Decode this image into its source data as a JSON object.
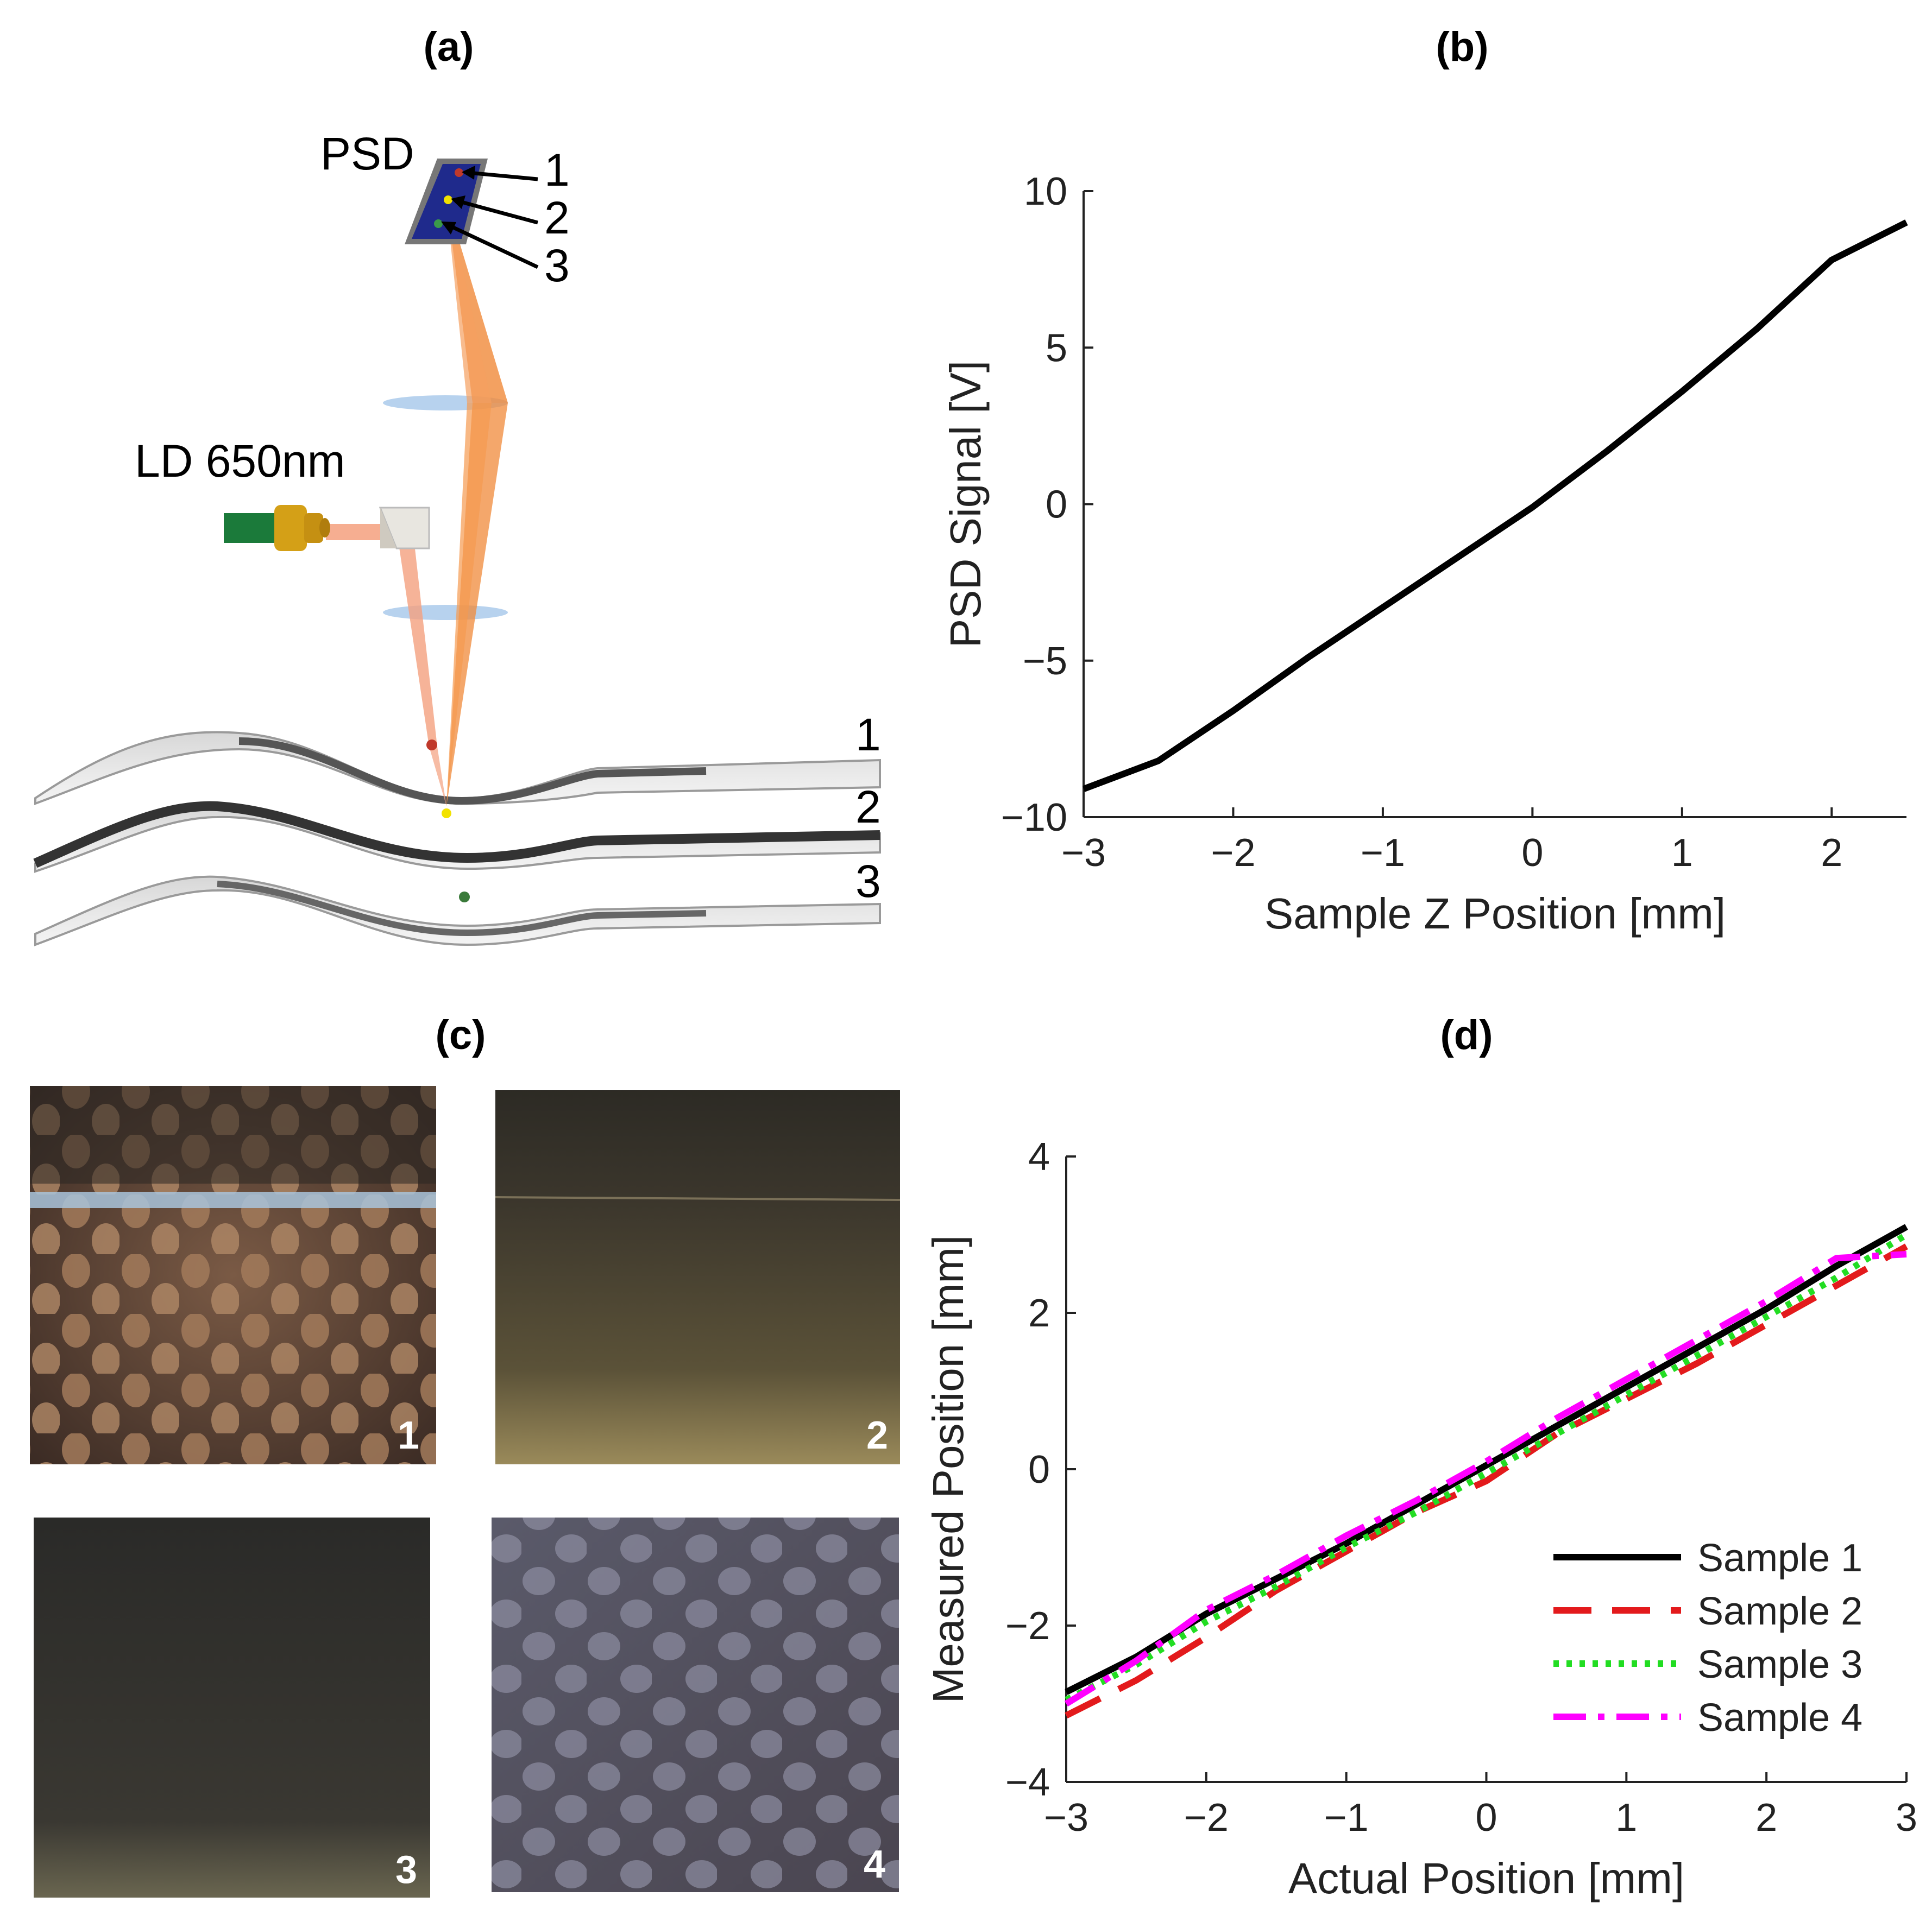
{
  "panels": {
    "a": {
      "label": "(a)",
      "psd_label": "PSD",
      "ld_label": "LD 650nm",
      "spot_labels": [
        "1",
        "2",
        "3"
      ],
      "surface_labels": [
        "1",
        "2",
        "3"
      ],
      "colors": {
        "beam": "#f08a3a",
        "laser_beam": "#f4a07e",
        "psd_face": "#1f2a8c",
        "ld_body": "#1b7a3a",
        "ld_connector": "#d4a017"
      }
    },
    "b": {
      "label": "(b)"
    },
    "c": {
      "label": "(c)",
      "photo_numbers": [
        "1",
        "2",
        "3",
        "4"
      ]
    },
    "d": {
      "label": "(d)"
    }
  },
  "chart_data": [
    {
      "type": "line",
      "panel": "(b)",
      "xlabel": "Sample Z Position [mm]",
      "ylabel": "PSD Signal [V]",
      "xlim": [
        -3,
        2.5
      ],
      "ylim": [
        -10,
        10
      ],
      "xticks": [
        -3,
        -2,
        -1,
        0,
        1,
        2
      ],
      "yticks": [
        -10,
        -5,
        0,
        5,
        10
      ],
      "xtick_labels": [
        "−3",
        "−2",
        "−1",
        "0",
        "1",
        "2"
      ],
      "ytick_labels": [
        "−10",
        "−5",
        "0",
        "5",
        "10"
      ],
      "series": [
        {
          "name": "PSD signal",
          "color": "#000000",
          "x": [
            -3,
            -2.5,
            -2,
            -1.5,
            -1,
            -0.5,
            0,
            0.5,
            1,
            1.5,
            2,
            2.5
          ],
          "y": [
            -9.1,
            -8.2,
            -6.6,
            -4.9,
            -3.3,
            -1.7,
            -0.1,
            1.7,
            3.6,
            5.6,
            7.8,
            9.0
          ]
        }
      ]
    },
    {
      "type": "line",
      "panel": "(d)",
      "xlabel": "Actual Position [mm]",
      "ylabel": "Measured Position [mm]",
      "xlim": [
        -3,
        3
      ],
      "ylim": [
        -4,
        4
      ],
      "xticks": [
        -3,
        -2,
        -1,
        0,
        1,
        2,
        3
      ],
      "yticks": [
        -4,
        -2,
        0,
        2,
        4
      ],
      "xtick_labels": [
        "−3",
        "−2",
        "−1",
        "0",
        "1",
        "2",
        "3"
      ],
      "ytick_labels": [
        "−4",
        "−2",
        "0",
        "2",
        "4"
      ],
      "legend": "bottom-right",
      "series": [
        {
          "name": "Sample 1",
          "color": "#000000",
          "dash": "solid",
          "x": [
            -3,
            -2.5,
            -2,
            -1.5,
            -1,
            -0.5,
            0,
            0.5,
            1,
            1.5,
            2,
            2.5,
            3
          ],
          "y": [
            -2.85,
            -2.4,
            -1.85,
            -1.4,
            -0.95,
            -0.45,
            0.05,
            0.55,
            1.05,
            1.55,
            2.05,
            2.6,
            3.1
          ]
        },
        {
          "name": "Sample 2",
          "color": "#e31a1c",
          "dash": "dash",
          "x": [
            -3,
            -2.5,
            -2,
            -1.5,
            -1,
            -0.5,
            0,
            0.5,
            1,
            1.5,
            2,
            2.5,
            3
          ],
          "y": [
            -3.15,
            -2.7,
            -2.15,
            -1.55,
            -1.05,
            -0.55,
            -0.15,
            0.45,
            0.9,
            1.35,
            1.85,
            2.35,
            2.85
          ]
        },
        {
          "name": "Sample 3",
          "color": "#22dd22",
          "dash": "dot",
          "x": [
            -3,
            -2.5,
            -2,
            -1.5,
            -1,
            -0.5,
            0,
            0.5,
            1,
            1.5,
            2,
            2.5,
            3
          ],
          "y": [
            -2.95,
            -2.5,
            -1.95,
            -1.5,
            -1.0,
            -0.55,
            -0.05,
            0.45,
            0.95,
            1.45,
            1.95,
            2.45,
            3.0
          ]
        },
        {
          "name": "Sample 4",
          "color": "#ff00ff",
          "dash": "dashdot",
          "x": [
            -3,
            -2.5,
            -2,
            -1.5,
            -1,
            -0.5,
            0,
            0.5,
            1,
            1.5,
            2,
            2.5,
            3
          ],
          "y": [
            -3.0,
            -2.45,
            -1.8,
            -1.35,
            -0.85,
            -0.4,
            0.1,
            0.65,
            1.15,
            1.65,
            2.15,
            2.7,
            2.75
          ]
        }
      ]
    }
  ]
}
